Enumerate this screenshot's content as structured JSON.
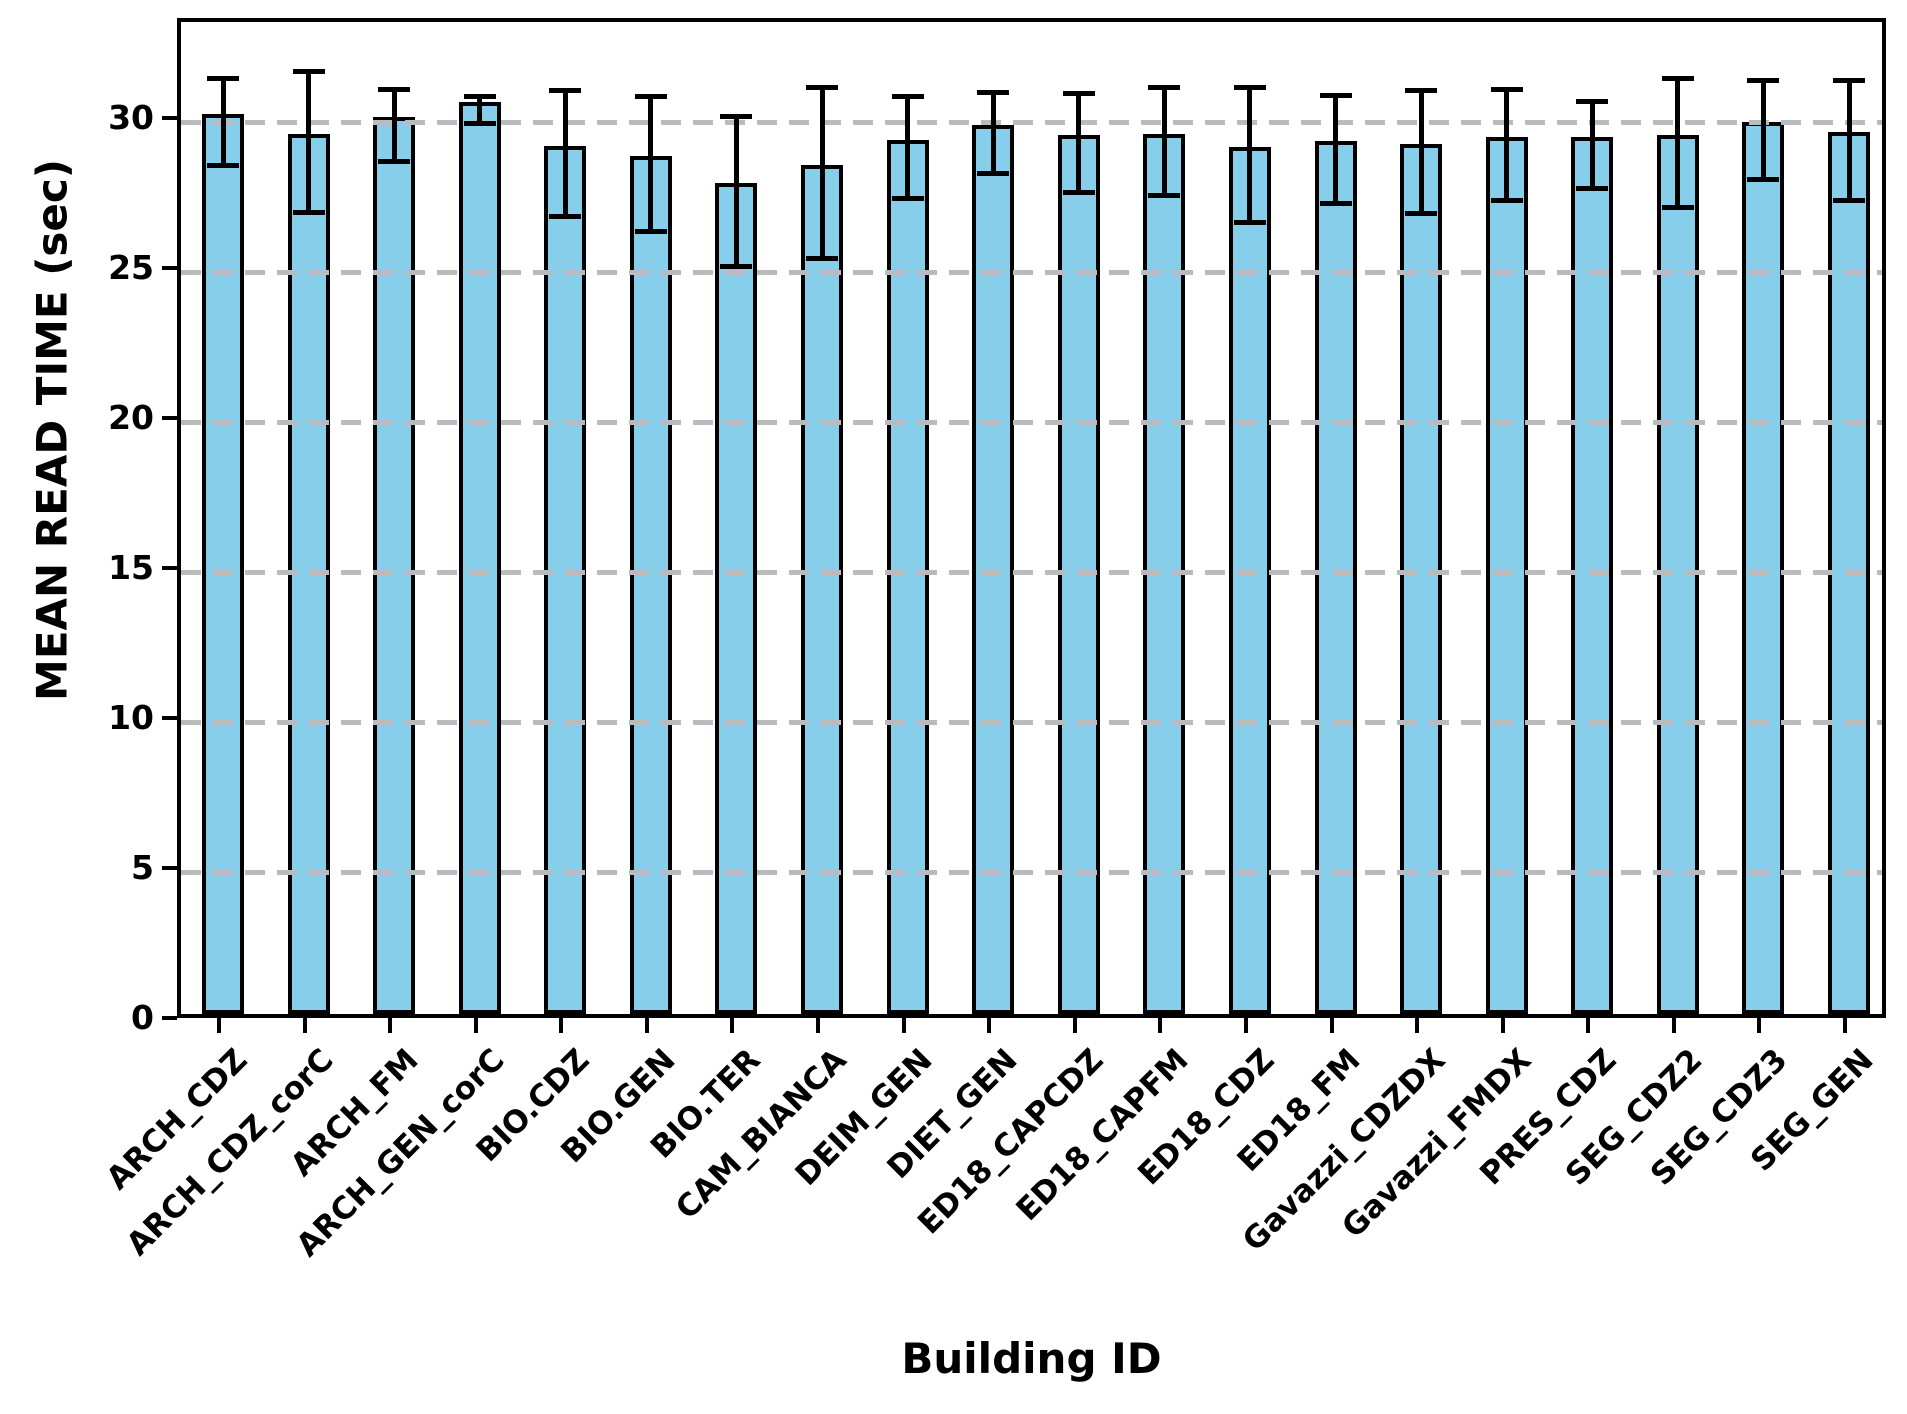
{
  "chart_data": {
    "type": "bar",
    "title": "",
    "xlabel": "Building ID",
    "ylabel": "MEAN READ TIME (sec)",
    "categories": [
      "ARCH_CDZ",
      "ARCH_CDZ_corC",
      "ARCH_FM",
      "ARCH_GEN_corC",
      "BIO.CDZ",
      "BIO.GEN",
      "BIO.TER",
      "CAM_BIANCA",
      "DEIM_GEN",
      "DIET_GEN",
      "ED18_CAPCDZ",
      "ED18_CAPFM",
      "ED18_CDZ",
      "ED18_FM",
      "Gavazzi_CDZDX",
      "Gavazzi_FMDX",
      "PRES_CDZ",
      "SEG_CDZ2",
      "SEG_CDZ3",
      "SEG_GEN"
    ],
    "values": [
      30.0,
      29.35,
      29.9,
      30.4,
      28.95,
      28.6,
      27.7,
      28.3,
      29.15,
      29.65,
      29.3,
      29.35,
      28.9,
      29.1,
      29.0,
      29.25,
      29.25,
      29.3,
      29.75,
      29.4
    ],
    "errors": [
      1.45,
      2.35,
      1.2,
      0.45,
      2.1,
      2.25,
      2.5,
      2.85,
      1.7,
      1.35,
      1.65,
      1.8,
      2.25,
      1.8,
      2.05,
      1.85,
      1.45,
      2.15,
      1.65,
      2.0
    ],
    "yticks": [
      0,
      5,
      10,
      15,
      20,
      25,
      30
    ],
    "ylim": [
      0,
      33.35
    ],
    "grid": "horizontal dashed at yticks above 0, drawn over bars",
    "legend_position": "none",
    "x_tick_rotation_deg": 45,
    "bar_color": "#87CEEB",
    "bar_edge_color": "#000000",
    "error_bar_color": "#000000",
    "grid_color": "#b9bcbe",
    "axis_color": "#000000"
  }
}
